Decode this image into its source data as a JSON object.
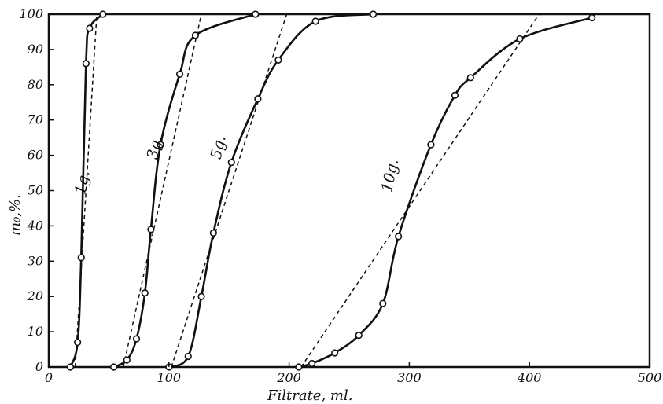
{
  "chart_data": {
    "type": "line",
    "title": "",
    "xlabel": "Filtrate, ml.",
    "ylabel": "m₀,%.",
    "xlim": [
      0,
      500
    ],
    "ylim": [
      0,
      100
    ],
    "x_ticks": [
      "0",
      "100",
      "200",
      "300",
      "400",
      "500"
    ],
    "y_ticks": [
      "0",
      "10",
      "20",
      "30",
      "40",
      "50",
      "60",
      "70",
      "80",
      "90",
      "100"
    ],
    "grid": false,
    "series": [
      {
        "name": "1g.",
        "x": [
          18,
          24,
          27,
          31,
          34,
          45
        ],
        "y": [
          0,
          7,
          31,
          86,
          96,
          100
        ],
        "tangent": [
          [
            22,
            0
          ],
          [
            40,
            100
          ]
        ]
      },
      {
        "name": "3g.",
        "x": [
          54,
          65,
          73,
          80,
          85,
          93,
          109,
          122,
          172
        ],
        "y": [
          0,
          2,
          8,
          21,
          39,
          63,
          83,
          94,
          100
        ],
        "tangent": [
          [
            62,
            0
          ],
          [
            127,
            100
          ]
        ]
      },
      {
        "name": "5g.",
        "x": [
          100,
          116,
          127,
          137,
          152,
          174,
          191,
          222,
          270
        ],
        "y": [
          0,
          3,
          20,
          38,
          58,
          76,
          87,
          98,
          100
        ],
        "tangent": [
          [
            102,
            0
          ],
          [
            198,
            100
          ]
        ]
      },
      {
        "name": "10g.",
        "x": [
          208,
          219,
          238,
          258,
          278,
          291,
          318,
          338,
          351,
          392,
          452
        ],
        "y": [
          0,
          1,
          4,
          9,
          18,
          37,
          63,
          77,
          82,
          93,
          99
        ],
        "tangent": [
          [
            210,
            0
          ],
          [
            408,
            100
          ]
        ]
      }
    ]
  }
}
